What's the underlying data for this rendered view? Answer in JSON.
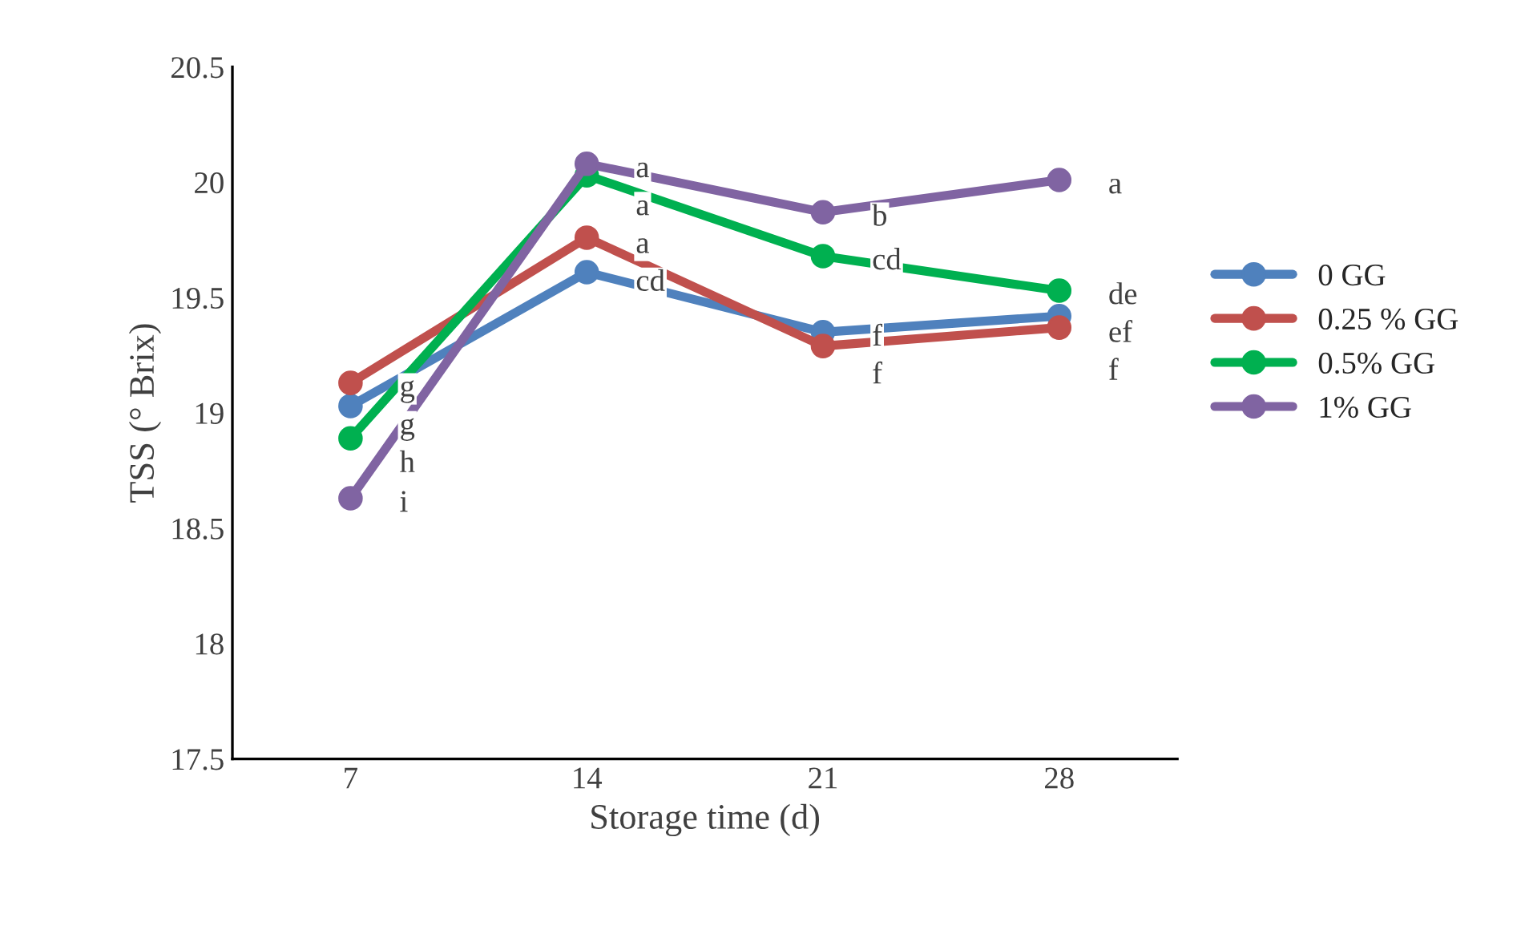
{
  "chart_data": {
    "type": "line",
    "xlabel": "Storage time (d)",
    "ylabel": "TSS (° Brix)",
    "categories": [
      "7",
      "14",
      "21",
      "28"
    ],
    "series": [
      {
        "name": "0 GG",
        "color": "#4f81bd",
        "values": [
          19.03,
          19.61,
          19.35,
          19.42
        ],
        "value_labels": [
          "g",
          "cd",
          "f",
          "ef"
        ]
      },
      {
        "name": "0.25 % GG",
        "color": "#c0504d",
        "values": [
          19.13,
          19.76,
          19.29,
          19.37
        ],
        "value_labels": [
          "g",
          "a",
          "f",
          "f"
        ]
      },
      {
        "name": "0.5% GG",
        "color": "#00b050",
        "values": [
          18.89,
          20.03,
          19.68,
          19.53
        ],
        "value_labels": [
          "h",
          "a",
          "cd",
          "de"
        ]
      },
      {
        "name": "1% GG",
        "color": "#8064a2",
        "values": [
          18.63,
          20.08,
          19.87,
          20.01
        ],
        "value_labels": [
          "i",
          "a",
          "b",
          "a"
        ]
      }
    ],
    "ylim": [
      17.5,
      20.5
    ],
    "yticks": [
      17.5,
      18,
      18.5,
      19,
      19.5,
      20,
      20.5
    ],
    "legend": "right",
    "grid": false,
    "marker": "circle",
    "line_style": "solid"
  }
}
